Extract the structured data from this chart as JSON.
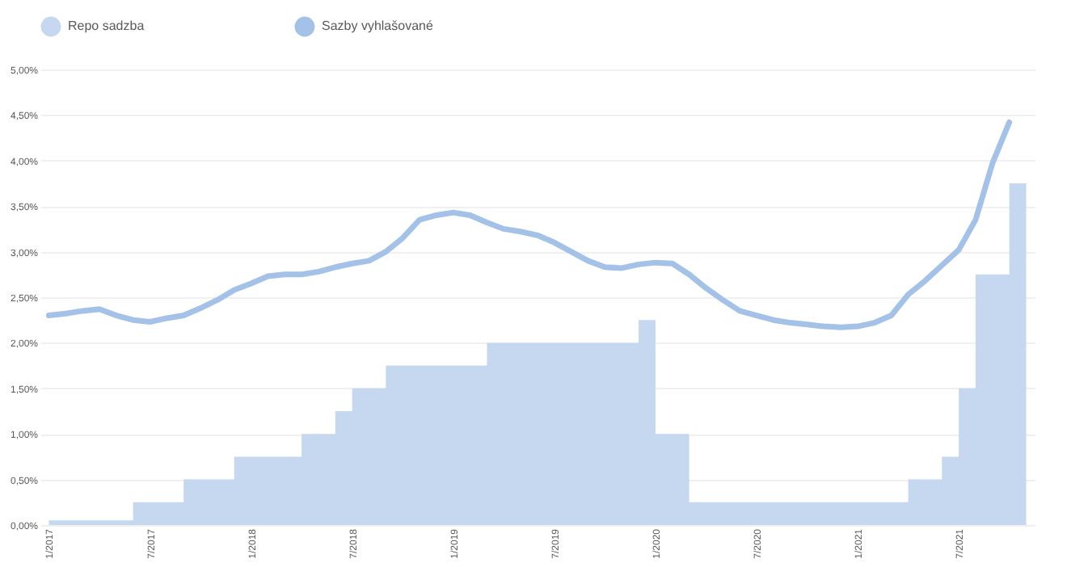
{
  "chart_data": {
    "type": "area",
    "categories": [
      "1/2017",
      null,
      null,
      null,
      null,
      null,
      "7/2017",
      null,
      null,
      null,
      null,
      null,
      "1/2018",
      null,
      null,
      null,
      null,
      null,
      "7/2018",
      null,
      null,
      null,
      null,
      null,
      "1/2019",
      null,
      null,
      null,
      null,
      null,
      "7/2019",
      null,
      null,
      null,
      null,
      null,
      "1/2020",
      null,
      null,
      null,
      null,
      null,
      "7/2020",
      null,
      null,
      null,
      null,
      null,
      "1/2021",
      null,
      null,
      null,
      null,
      null,
      "7/2021",
      null,
      null,
      null,
      null
    ],
    "series": [
      {
        "name": "Repo sadzba",
        "color": "#c5d8ef",
        "values": [
          0.05,
          0.05,
          0.05,
          0.05,
          0.05,
          0.25,
          0.25,
          0.25,
          0.5,
          0.5,
          0.5,
          0.75,
          0.75,
          0.75,
          0.75,
          1.0,
          1.0,
          1.25,
          1.5,
          1.5,
          1.75,
          1.75,
          1.75,
          1.75,
          1.75,
          1.75,
          2.0,
          2.0,
          2.0,
          2.0,
          2.0,
          2.0,
          2.0,
          2.0,
          2.0,
          2.25,
          1.0,
          1.0,
          0.25,
          0.25,
          0.25,
          0.25,
          0.25,
          0.25,
          0.25,
          0.25,
          0.25,
          0.25,
          0.25,
          0.25,
          0.25,
          0.5,
          0.5,
          0.75,
          1.5,
          2.75,
          2.75,
          3.75,
          3.75
        ]
      },
      {
        "name": "Sazby vyhlašované",
        "type": "line",
        "color": "#a4c2e8",
        "values": [
          2.3,
          2.32,
          2.35,
          2.37,
          2.3,
          2.25,
          2.23,
          2.27,
          2.3,
          2.38,
          2.47,
          2.58,
          2.65,
          2.73,
          2.75,
          2.75,
          2.78,
          2.83,
          2.87,
          2.9,
          3.0,
          3.15,
          3.35,
          3.4,
          3.43,
          3.4,
          3.32,
          3.25,
          3.22,
          3.18,
          3.1,
          3.0,
          2.9,
          2.83,
          2.82,
          2.86,
          2.88,
          2.87,
          2.75,
          2.6,
          2.47,
          2.35,
          2.3,
          2.25,
          2.22,
          2.2,
          2.18,
          2.17,
          2.18,
          2.22,
          2.3,
          2.53,
          2.68,
          2.85,
          3.02,
          3.35,
          3.97,
          4.42,
          null
        ]
      }
    ],
    "ylim": [
      0,
      5
    ],
    "yticks": [
      {
        "value": 0,
        "label": "0,00%"
      },
      {
        "value": 0.5,
        "label": "0,50%"
      },
      {
        "value": 1,
        "label": "1,00%"
      },
      {
        "value": 1.5,
        "label": "1,50%"
      },
      {
        "value": 2,
        "label": "2,00%"
      },
      {
        "value": 2.5,
        "label": "2,50%"
      },
      {
        "value": 3,
        "label": "3,00%"
      },
      {
        "value": 3.5,
        "label": "3,50%"
      },
      {
        "value": 4,
        "label": "4,00%"
      },
      {
        "value": 4.5,
        "label": "4,50%"
      },
      {
        "value": 5,
        "label": "5,00%"
      }
    ],
    "grid": "y",
    "legend": "top",
    "marker": "none"
  }
}
